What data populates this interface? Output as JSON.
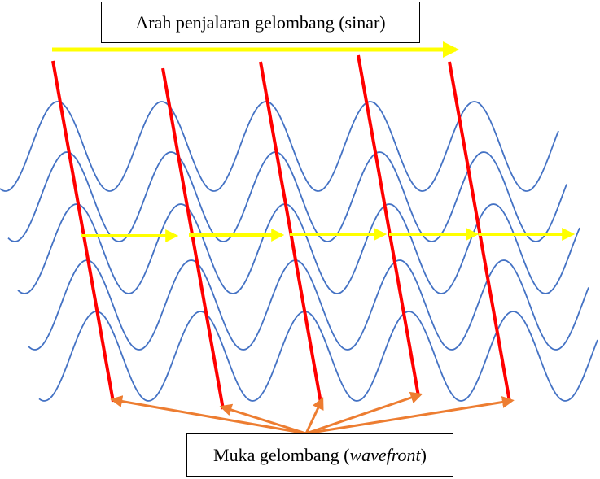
{
  "top_label": "Arah penjalaran gelombang (sinar)",
  "bottom_label": {
    "prefix": "Muka gelombang (",
    "italic": "wavefront",
    "suffix": ")"
  },
  "colors": {
    "wave": "#4472c4",
    "wavefront": "#ff0000",
    "ray_arrow": "#ffff00",
    "pointer_arrow": "#ed7d31"
  }
}
